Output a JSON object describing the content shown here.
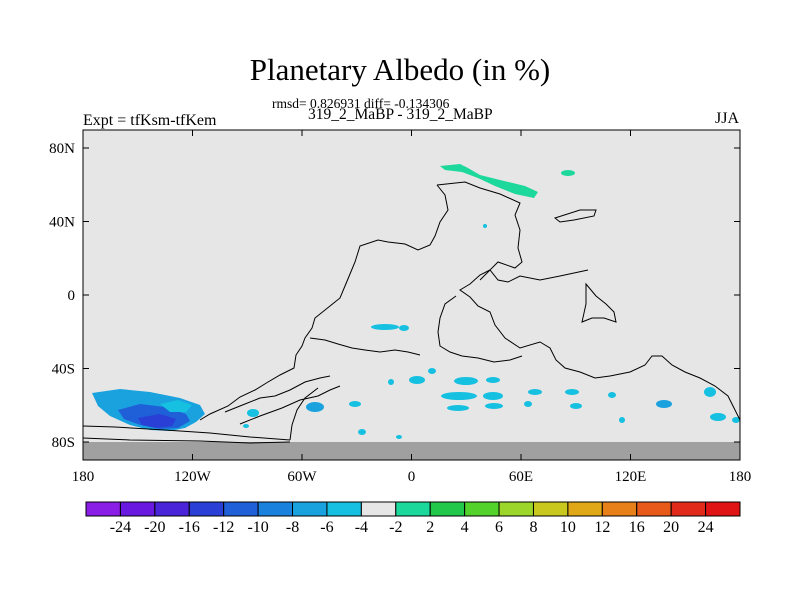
{
  "chart_data": {
    "type": "heatmap",
    "title": "Planetary Albedo (in %)",
    "stats_text": "rmsd= 0.826931 diff= -0.134306",
    "subtitle": "319_2_MaBP - 319_2_MaBP",
    "left_label": "Expt = tfKsm-tfKem",
    "right_label": "JJA",
    "xlim": [
      -180,
      180
    ],
    "ylim": [
      -90,
      90
    ],
    "x_ticks": [
      {
        "value": -180,
        "label": "180"
      },
      {
        "value": -120,
        "label": "120W"
      },
      {
        "value": -60,
        "label": "60W"
      },
      {
        "value": 0,
        "label": "0"
      },
      {
        "value": 60,
        "label": "60E"
      },
      {
        "value": 120,
        "label": "120E"
      },
      {
        "value": 180,
        "label": "180"
      }
    ],
    "y_ticks": [
      {
        "value": 80,
        "label": "80N"
      },
      {
        "value": 40,
        "label": "40N"
      },
      {
        "value": 0,
        "label": "0"
      },
      {
        "value": -40,
        "label": "40S"
      },
      {
        "value": -80,
        "label": "80S"
      }
    ],
    "colorbar": {
      "levels": [
        "-24",
        "-20",
        "-16",
        "-12",
        "-10",
        "-8",
        "-6",
        "-4",
        "-2",
        "2",
        "4",
        "6",
        "8",
        "10",
        "12",
        "16",
        "20",
        "24"
      ],
      "colors": [
        "#8a1de6",
        "#6a1ae0",
        "#4a24d8",
        "#2a3fd6",
        "#1f5fd8",
        "#1a82dc",
        "#1aa2df",
        "#16c0e0",
        "#e6e6e6",
        "#1cd89a",
        "#22c84a",
        "#52d22a",
        "#9cd62a",
        "#c8c81e",
        "#e0a816",
        "#e8801a",
        "#e85a1a",
        "#e22a1a",
        "#e01414"
      ]
    },
    "background": {
      "neutral_color": "#e6e6e6",
      "missing_color": "#a0a0a0",
      "missing_lat_below": -80
    },
    "anomalies": [
      {
        "region": "south pacific near 60S",
        "lon": -145,
        "lat": -65,
        "min_value": -12,
        "color": "#2a3fd6"
      },
      {
        "region": "south pacific near 60S",
        "lon": -150,
        "lat": -62,
        "value": -6,
        "color": "#1aa2df"
      },
      {
        "region": "arctic",
        "lon": 42,
        "lat": 70,
        "value": 4,
        "color": "#1cd89a"
      },
      {
        "region": "arctic",
        "lon": 57,
        "lat": 67,
        "value": 4,
        "color": "#1cd89a"
      }
    ]
  }
}
